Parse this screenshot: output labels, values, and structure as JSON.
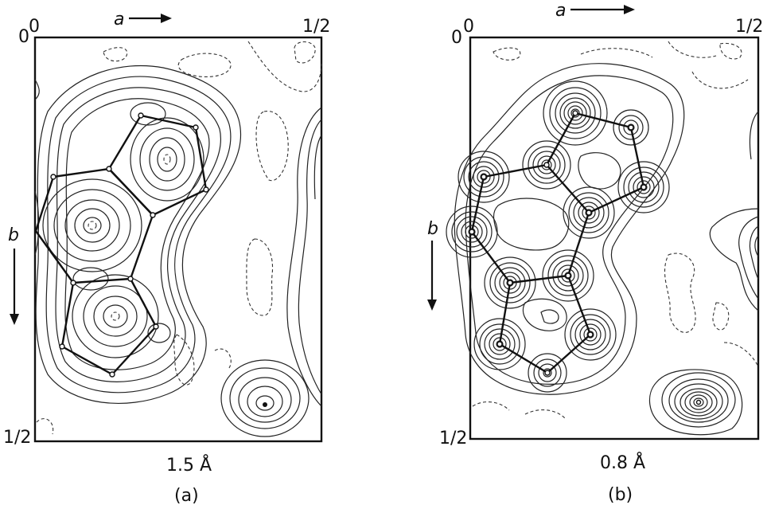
{
  "panel_a": {
    "axis_a_label": "a",
    "axis_b_label": "b",
    "origin_label": "0",
    "origin_x_label": "0",
    "half_a_label": "1/2",
    "half_b_label": "1/2",
    "resolution": "1.5 Å",
    "caption": "(a)"
  },
  "panel_b": {
    "axis_a_label": "a",
    "axis_b_label": "b",
    "origin_label": "0",
    "origin_x_label": "0",
    "half_a_label": "1/2",
    "half_b_label": "1/2",
    "resolution": "0.8 Å",
    "caption": "(b)"
  }
}
